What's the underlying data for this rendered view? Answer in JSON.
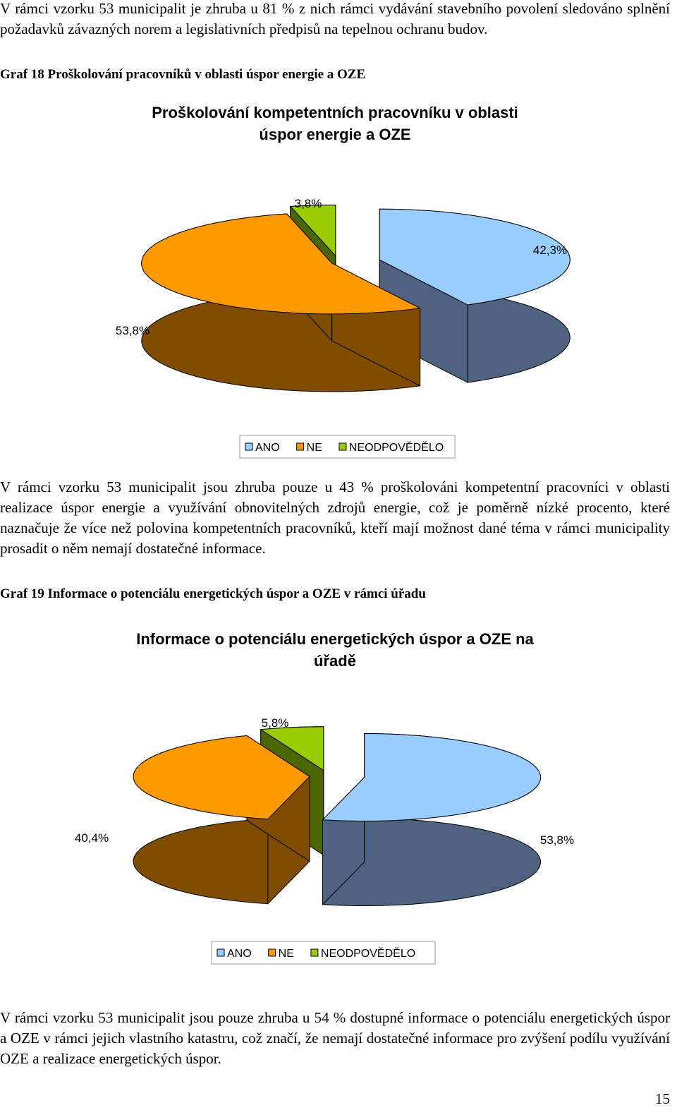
{
  "paragraphs": {
    "p1": "V rámci vzorku 53 municipalit je zhruba u 81 % z nich rámci vydávání stavebního povolení sledováno splnění požadavků závazných norem a legislativních předpisů na tepelnou ochranu budov.",
    "p2": "V rámci vzorku 53 municipalit jsou zhruba pouze u 43 % proškolováni kompetentní pracovníci v oblasti realizace úspor energie a využívání obnovitelných zdrojů energie, což je poměrně nízké procento, které naznačuje že více než polovina kompetentních pracovníků, kteří mají možnost dané téma v rámci municipality prosadit o něm nemají dostatečné informace.",
    "p3": "V rámci vzorku 53 municipalit jsou pouze zhruba u 54 % dostupné informace o potenciálu energetických úspor a OZE v rámci jejich vlastního katastru, což značí, že nemají dostatečné informace pro zvýšení podílu využívání OZE a realizace energetických úspor."
  },
  "captions": {
    "graf18": "Graf 18 Proškolování pracovníků v oblasti úspor energie a OZE",
    "graf19": "Graf 19 Informace o potenciálu energetických úspor a OZE v rámci úřadu"
  },
  "colors": {
    "ano_top": "#99ccff",
    "ano_side": "#4f6380",
    "ne_top": "#ff9900",
    "ne_side": "#7f4c00",
    "neodp_top": "#99cc00",
    "neodp_side": "#4c6600"
  },
  "chart_data": [
    {
      "type": "pie",
      "title_line1": "Proškolování kompetentních pracovníku v oblasti",
      "title_line2": "úspor energie a OZE",
      "categories": [
        "ANO",
        "NE",
        "NEODPOVĚDĚLO"
      ],
      "values": [
        42.3,
        53.8,
        3.8
      ],
      "labels": [
        "42,3%",
        "53,8%",
        "3,8%"
      ],
      "legend": "bottom"
    },
    {
      "type": "pie",
      "title_line1": "Informace o potenciálu energetických úspor a OZE na",
      "title_line2": "úřadě",
      "categories": [
        "ANO",
        "NE",
        "NEODPOVĚDĚLO"
      ],
      "values": [
        53.8,
        40.4,
        5.8
      ],
      "labels": [
        "53,8%",
        "40,4%",
        "5,8%"
      ],
      "legend": "bottom"
    }
  ],
  "page_number": "15"
}
